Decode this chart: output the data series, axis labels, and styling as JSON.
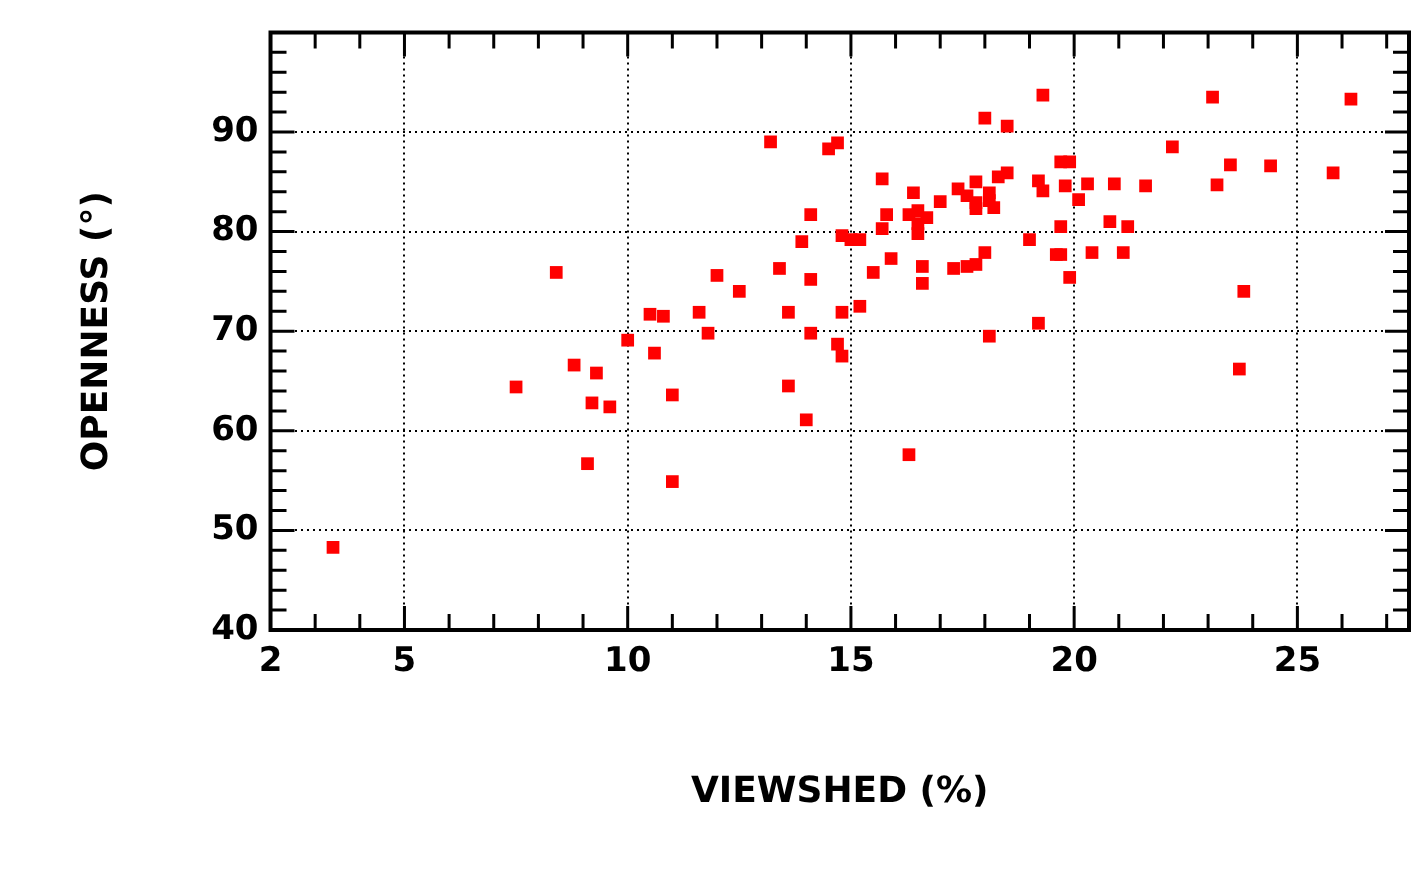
{
  "chart_data": {
    "type": "scatter",
    "xlabel": "VIEWSHED (%)",
    "ylabel": "OPENNESS (°)",
    "xlim": [
      2,
      27.5
    ],
    "ylim": [
      40,
      100
    ],
    "xticks": [
      2,
      {
        "value": 3,
        "label": null
      },
      {
        "value": 4,
        "label": null
      },
      5,
      {
        "value": 6,
        "label": null
      },
      {
        "value": 7,
        "label": null
      },
      {
        "value": 8,
        "label": null
      },
      {
        "value": 9,
        "label": null
      },
      10,
      {
        "value": 11,
        "label": null
      },
      {
        "value": 12,
        "label": null
      },
      {
        "value": 13,
        "label": null
      },
      {
        "value": 14,
        "label": null
      },
      15,
      {
        "value": 16,
        "label": null
      },
      {
        "value": 17,
        "label": null
      },
      {
        "value": 18,
        "label": null
      },
      {
        "value": 19,
        "label": null
      },
      20,
      {
        "value": 21,
        "label": null
      },
      {
        "value": 22,
        "label": null
      },
      {
        "value": 23,
        "label": null
      },
      {
        "value": 24,
        "label": null
      },
      25,
      {
        "value": 26,
        "label": null
      },
      {
        "value": 27,
        "label": null
      }
    ],
    "yticks": [
      40,
      {
        "value": 42,
        "label": null
      },
      {
        "value": 44,
        "label": null
      },
      {
        "value": 46,
        "label": null
      },
      {
        "value": 48,
        "label": null
      },
      50,
      {
        "value": 52,
        "label": null
      },
      {
        "value": 54,
        "label": null
      },
      {
        "value": 56,
        "label": null
      },
      {
        "value": 58,
        "label": null
      },
      60,
      {
        "value": 62,
        "label": null
      },
      {
        "value": 64,
        "label": null
      },
      {
        "value": 66,
        "label": null
      },
      {
        "value": 68,
        "label": null
      },
      70,
      {
        "value": 72,
        "label": null
      },
      {
        "value": 74,
        "label": null
      },
      {
        "value": 76,
        "label": null
      },
      {
        "value": 78,
        "label": null
      },
      80,
      {
        "value": 82,
        "label": null
      },
      {
        "value": 84,
        "label": null
      },
      {
        "value": 86,
        "label": null
      },
      {
        "value": 88,
        "label": null
      },
      90,
      {
        "value": 92,
        "label": null
      },
      {
        "value": 94,
        "label": null
      },
      {
        "value": 96,
        "label": null
      },
      {
        "value": 98,
        "label": null
      },
      {
        "value": 100,
        "label": null
      }
    ],
    "grid": true,
    "marker": "square",
    "legend": false,
    "series": [
      {
        "color": "#ff0000",
        "x": [
          3.4,
          8.4,
          7.5,
          8.8,
          9.3,
          9.2,
          9.6,
          9.1,
          10.0,
          10.5,
          10.8,
          10.6,
          11.0,
          11.0,
          11.6,
          11.8,
          12.0,
          12.5,
          13.2,
          13.4,
          13.6,
          13.6,
          13.9,
          14.1,
          14.1,
          14.0,
          14.1,
          14.5,
          14.7,
          14.7,
          14.8,
          19.3,
          23.1,
          26.2,
          18.0,
          18.5,
          22.2,
          19.7,
          19.9,
          23.5,
          24.4,
          25.8,
          15.7,
          17.8,
          18.3,
          18.5,
          19.2,
          19.3,
          19.8,
          20.3,
          20.9,
          21.6,
          23.2,
          16.4,
          17.4,
          17.6,
          18.1,
          17.0,
          17.8,
          18.1,
          17.8,
          18.2,
          20.1,
          15.8,
          16.3,
          16.5,
          16.7,
          16.5,
          15.7,
          16.5,
          20.8,
          21.2,
          19.7,
          14.8,
          15.0,
          15.2,
          19.0,
          19.6,
          19.7,
          20.4,
          21.1,
          18.0,
          15.9,
          15.5,
          16.6,
          16.6,
          17.3,
          17.6,
          17.8,
          19.9,
          23.8,
          15.2,
          14.8,
          19.2,
          18.1,
          23.7,
          16.3
        ],
        "values": [
          48.3,
          75.9,
          64.4,
          66.6,
          65.8,
          62.8,
          62.4,
          56.7,
          69.1,
          71.7,
          71.5,
          67.8,
          63.6,
          54.9,
          71.9,
          69.8,
          75.6,
          74.0,
          89.0,
          76.3,
          71.9,
          64.5,
          79.0,
          75.2,
          69.8,
          61.1,
          81.7,
          88.3,
          88.9,
          68.7,
          67.5,
          93.7,
          93.5,
          93.3,
          91.4,
          90.6,
          88.5,
          87.0,
          87.0,
          86.7,
          86.6,
          85.9,
          85.3,
          85.0,
          85.5,
          85.9,
          85.1,
          84.1,
          84.6,
          84.8,
          84.8,
          84.6,
          84.7,
          83.9,
          84.3,
          83.6,
          83.9,
          83.0,
          82.9,
          83.1,
          82.3,
          82.4,
          83.2,
          81.7,
          81.7,
          82.1,
          81.4,
          80.8,
          80.3,
          79.8,
          81.0,
          80.5,
          80.5,
          79.6,
          79.2,
          79.2,
          79.2,
          77.7,
          77.7,
          77.9,
          77.9,
          77.9,
          77.3,
          75.9,
          76.5,
          74.8,
          76.3,
          76.5,
          76.7,
          75.4,
          74.0,
          72.5,
          71.9,
          70.8,
          69.5,
          66.2,
          57.6
        ]
      }
    ]
  }
}
